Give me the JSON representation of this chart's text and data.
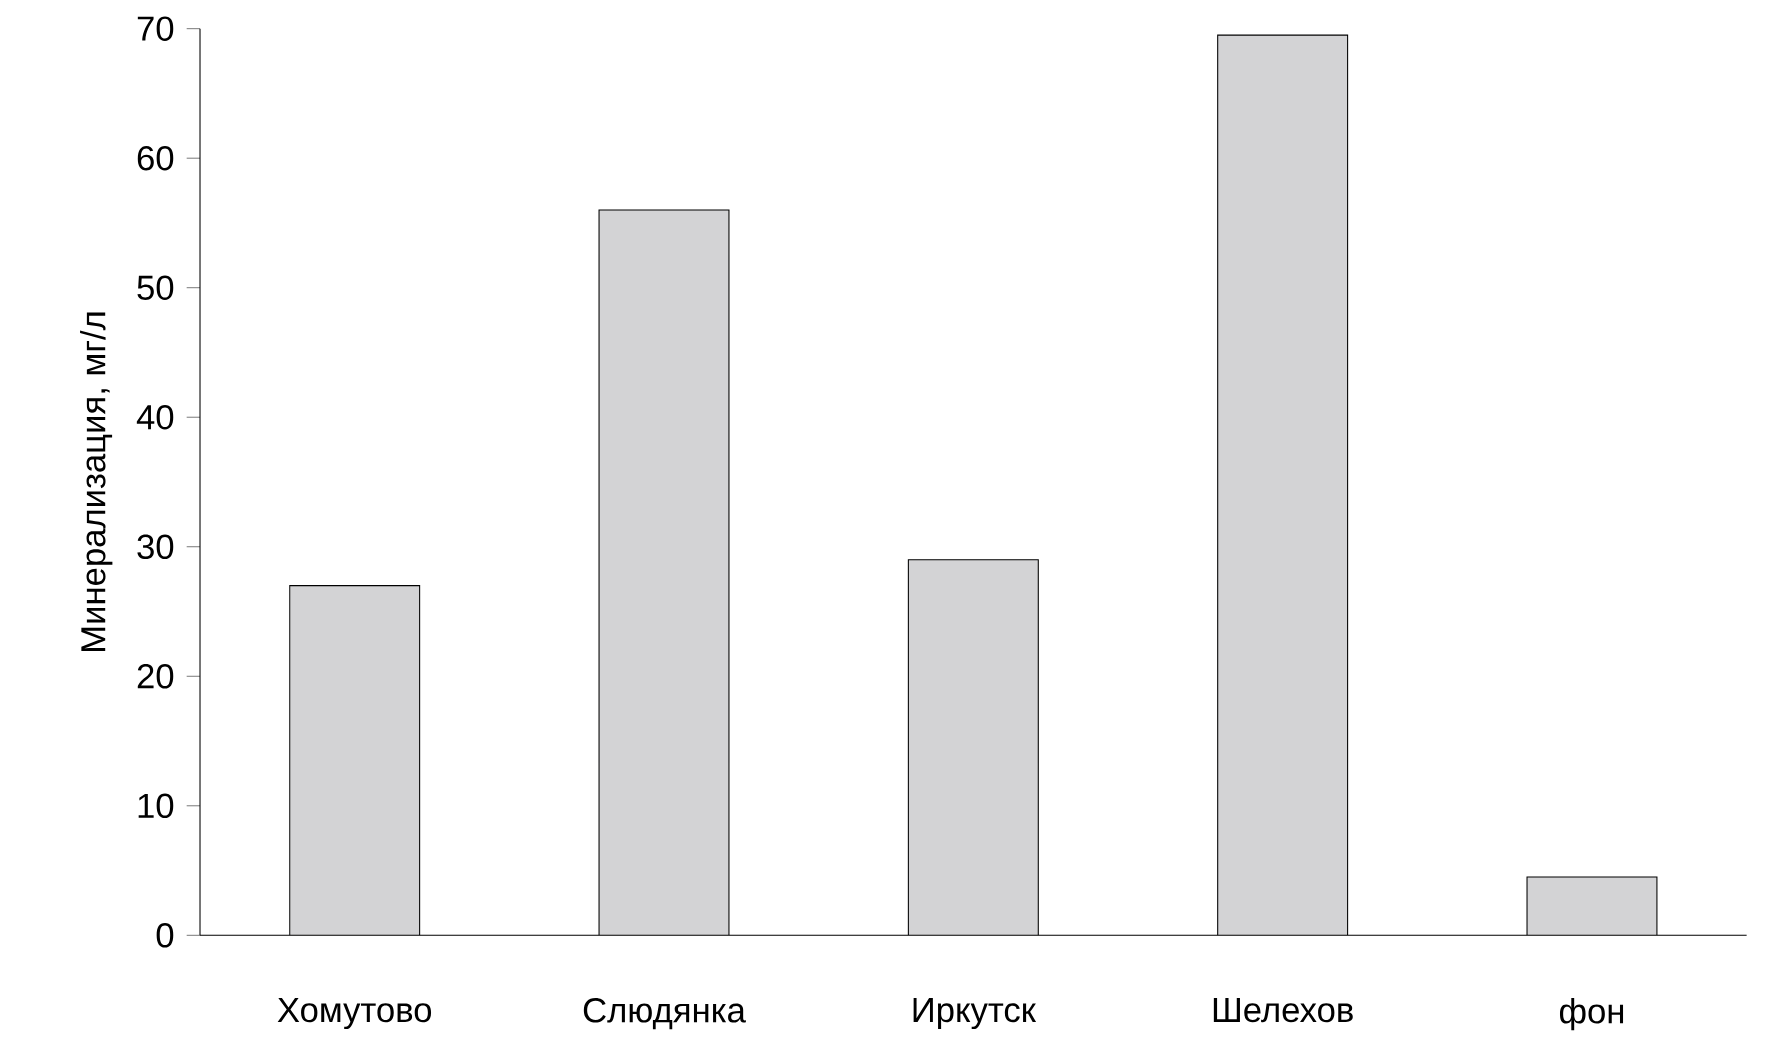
{
  "chart_data": {
    "type": "bar",
    "ylabel": "Минерализация, мг/л",
    "categories": [
      "Хомутово",
      "Слюдянка",
      "Иркутск",
      "Шелехов",
      "фон"
    ],
    "values": [
      27,
      56,
      29,
      69.5,
      4.5
    ],
    "color": "#d3d3d5",
    "ylim": [
      0,
      70
    ],
    "yticks": [
      0,
      10,
      20,
      30,
      40,
      50,
      60,
      70
    ],
    "grid": false
  }
}
